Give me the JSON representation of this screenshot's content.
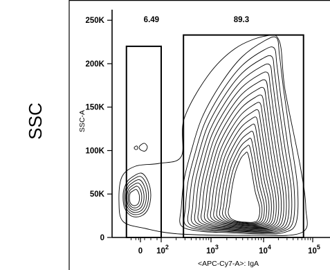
{
  "chart_data": {
    "type": "contour",
    "side_label": "SSC",
    "xlabel": "<APC-Cy7-A>: IgA",
    "ylabel": "SSC-A",
    "x_scale": "biexponential",
    "y_scale": "linear",
    "ylim": [
      0,
      262144
    ],
    "y_ticks": [
      {
        "value": 0,
        "label": "0"
      },
      {
        "value": 50000,
        "label": "50K"
      },
      {
        "value": 100000,
        "label": "100K"
      },
      {
        "value": 150000,
        "label": "150K"
      },
      {
        "value": 200000,
        "label": "200K"
      },
      {
        "value": 250000,
        "label": "250K"
      }
    ],
    "x_ticks": [
      {
        "value": 0,
        "label": "0",
        "exp": ""
      },
      {
        "value": 100,
        "label": "10",
        "exp": "2"
      },
      {
        "value": 1000,
        "label": "10",
        "exp": "3"
      },
      {
        "value": 10000,
        "label": "10",
        "exp": "4"
      },
      {
        "value": 100000,
        "label": "10",
        "exp": "5"
      }
    ],
    "gates": [
      {
        "label": "6.49",
        "x_range": [
          -150,
          100
        ],
        "y_range": [
          0,
          220000
        ]
      },
      {
        "label": "89.3",
        "x_range": [
          280,
          65000
        ],
        "y_range": [
          0,
          233000
        ]
      }
    ],
    "grid": false
  }
}
